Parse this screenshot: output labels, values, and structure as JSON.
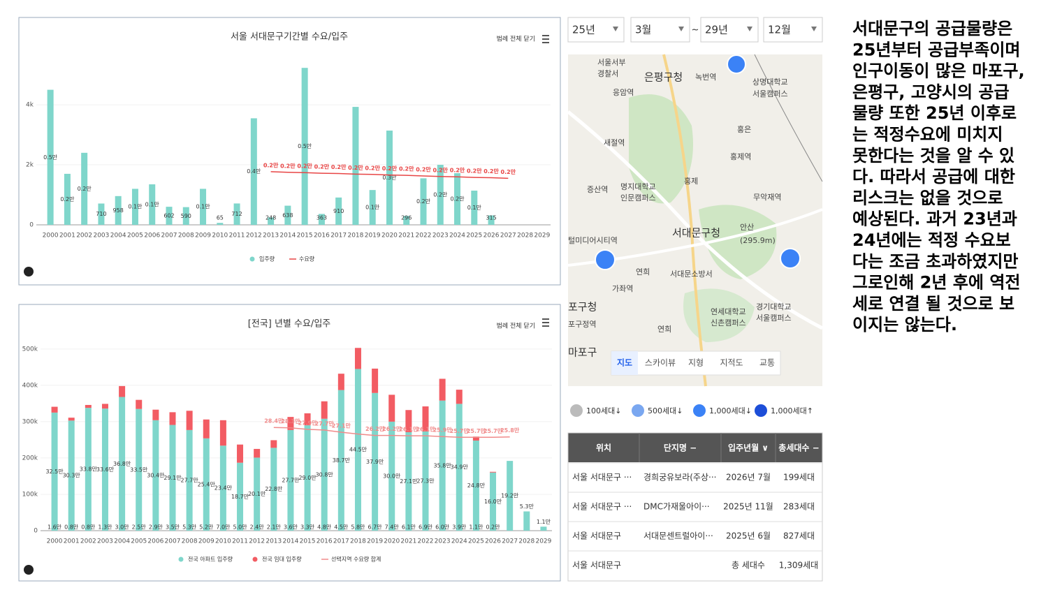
{
  "chart_data": [
    {
      "type": "bar",
      "title": "서울 서대문구기간별 수요/입주",
      "legend_toggle": "범례 전체 닫기",
      "legend": "bottom",
      "categories": [
        "2000",
        "2001",
        "2002",
        "2003",
        "2004",
        "2005",
        "2006",
        "2007",
        "2008",
        "2009",
        "2010",
        "2011",
        "2012",
        "2013",
        "2014",
        "2015",
        "2016",
        "2017",
        "2018",
        "2019",
        "2020",
        "2021",
        "2022",
        "2023",
        "2024",
        "2025",
        "2026",
        "2027",
        "2028",
        "2029"
      ],
      "ylim": [
        0,
        5700
      ],
      "yticks": [
        0,
        {
          "value": 2000,
          "label": "2k"
        },
        {
          "value": 4000,
          "label": "4k"
        }
      ],
      "series": [
        {
          "name": "입주량",
          "color": "#7fd6cb",
          "type": "bar",
          "values": [
            4500,
            1700,
            2400,
            710,
            958,
            1200,
            1350,
            602,
            590,
            1200,
            65,
            712,
            3550,
            248,
            638,
            5230,
            363,
            910,
            3930,
            1160,
            3140,
            296,
            1550,
            2000,
            1720,
            1140,
            315,
            null,
            null,
            null
          ],
          "value_labels": [
            "0.5만",
            "0.2만",
            "0.2만",
            "710",
            "958",
            "0.1만",
            "0.1만",
            "602",
            "590",
            "0.1만",
            "65",
            "712",
            "0.4만",
            "248",
            "638",
            "0.5만",
            "363",
            "910",
            null,
            "0.1만",
            "0.3만",
            "296",
            "0.2만",
            "0.2만",
            "0.2만",
            "0.1만",
            "315",
            null,
            null,
            null
          ]
        },
        {
          "name": "수요량",
          "color": "#e84545",
          "type": "line",
          "values": [
            null,
            null,
            null,
            null,
            null,
            null,
            null,
            null,
            null,
            null,
            null,
            null,
            null,
            1770,
            1750,
            1740,
            1720,
            1710,
            1690,
            1680,
            1660,
            1650,
            1630,
            1610,
            1600,
            1580,
            1570,
            1550,
            null,
            null
          ],
          "value_labels": [
            null,
            null,
            null,
            null,
            null,
            null,
            null,
            null,
            null,
            null,
            null,
            null,
            null,
            "0.2만",
            "0.2만",
            "0.2만",
            "0.2만",
            "0.2만",
            "0.2만",
            "0.2만",
            "0.2만",
            "0.2만",
            "0.2만",
            "0.2만",
            "0.2만",
            "0.2만",
            "0.2만",
            "0.2만",
            null,
            null
          ]
        }
      ]
    },
    {
      "type": "bar",
      "stacked": true,
      "title": "[전국] 년별 수요/입주",
      "legend_toggle": "범례 전체 닫기",
      "legend": "bottom",
      "categories": [
        "2000",
        "2001",
        "2002",
        "2003",
        "2004",
        "2005",
        "2006",
        "2007",
        "2008",
        "2009",
        "2010",
        "2011",
        "2012",
        "2013",
        "2014",
        "2015",
        "2016",
        "2017",
        "2018",
        "2019",
        "2020",
        "2021",
        "2022",
        "2023",
        "2024",
        "2025",
        "2026",
        "2027",
        "2028",
        "2029"
      ],
      "ylim": [
        0,
        540000
      ],
      "yticks": [
        0,
        {
          "value": 100000,
          "label": "100k"
        },
        {
          "value": 200000,
          "label": "200k"
        },
        {
          "value": 300000,
          "label": "300k"
        },
        {
          "value": 400000,
          "label": "400k"
        },
        {
          "value": 500000,
          "label": "500k"
        }
      ],
      "series": [
        {
          "name": "전국 아파트 입주량",
          "color": "#7fd6cb",
          "type": "bar",
          "values": [
            325000,
            303000,
            338000,
            336000,
            368000,
            335000,
            304000,
            291000,
            277000,
            254000,
            234000,
            187000,
            201000,
            228000,
            277000,
            290000,
            308000,
            387000,
            445000,
            379000,
            300000,
            271000,
            273000,
            358000,
            349000,
            248000,
            160000,
            192000,
            53000,
            11000
          ],
          "value_labels": [
            "32.5만",
            "30.3만",
            "33.8만",
            "33.6만",
            "36.8만",
            "33.5만",
            "30.4만",
            "29.1만",
            "27.7만",
            "25.4만",
            "23.4만",
            "18.7만",
            "20.1만",
            "22.8만",
            "27.7만",
            "29.0만",
            "30.8만",
            "38.7만",
            "44.5만",
            "37.9만",
            "30.0만",
            "27.1만",
            "27.3만",
            "35.8만",
            "34.9만",
            "24.8만",
            "16.0만",
            "19.2만",
            "5.3만",
            "1.1만"
          ]
        },
        {
          "name": "전국 임대 입주량",
          "color": "#f25c63",
          "type": "bar",
          "values": [
            16000,
            8000,
            8000,
            13000,
            30000,
            25000,
            29000,
            35000,
            53000,
            52000,
            70000,
            50000,
            24000,
            21000,
            36000,
            33000,
            48000,
            45000,
            58000,
            67000,
            74000,
            61000,
            69000,
            60000,
            39000,
            11000,
            2000,
            null,
            null,
            null
          ],
          "value_labels": [
            "1.6만",
            "0.8만",
            "0.8만",
            "1.3만",
            "3.0만",
            "2.5만",
            "2.9만",
            "3.5만",
            "5.3만",
            "5.2만",
            "7.0만",
            "5.0만",
            "2.4만",
            "2.1만",
            "3.6만",
            "3.3만",
            "4.8만",
            "4.5만",
            "5.8만",
            "6.7만",
            "7.4만",
            "6.1만",
            "6.9만",
            "6.0만",
            "3.9만",
            "1.1만",
            "0.2만",
            null,
            null,
            null
          ]
        },
        {
          "name": "선택지역 수요량 합계",
          "color": "#f08a8a",
          "type": "line",
          "values": [
            null,
            null,
            null,
            null,
            null,
            null,
            null,
            null,
            null,
            null,
            null,
            null,
            null,
            284000,
            283000,
            279000,
            277000,
            271000,
            266000,
            262000,
            262000,
            261000,
            261000,
            259000,
            257000,
            257000,
            257000,
            258000,
            null,
            null
          ],
          "value_labels": [
            null,
            null,
            null,
            null,
            null,
            null,
            null,
            null,
            null,
            null,
            null,
            null,
            null,
            "28.4만",
            "28.3만",
            "27.9만",
            "27.7만",
            "27.1만",
            null,
            "26.2만",
            "26.2만",
            "26.1만",
            "26.1만",
            "25.9만",
            "25.7만",
            "25.7만",
            "25.7만",
            "25.8만",
            null,
            null
          ]
        }
      ]
    }
  ],
  "selectors": {
    "from_year": "25년",
    "from_month": "3월",
    "separator": "~",
    "to_year": "29년",
    "to_month": "12월"
  },
  "map": {
    "labels": [
      "서울서부",
      "경찰서",
      "은평구청",
      "녹번역",
      "상명대학교",
      "서울캠퍼스",
      "응암역",
      "홍은",
      "새절역",
      "홍제역",
      "증산역",
      "명지대학교",
      "인문캠퍼스",
      "홍제",
      "무악재역",
      "서대문구청",
      "안산",
      "(295.9m)",
      "털미디어시티역",
      "연희",
      "서대문소방서",
      "가좌역",
      "포구청",
      "포구정역",
      "연세대학교",
      "신촌캠퍼스",
      "경기대학교",
      "서울캠퍼스",
      "연희",
      "마포구"
    ],
    "tabs": [
      "지도",
      "스카이뷰",
      "지형",
      "지적도",
      "교통"
    ]
  },
  "map_legend": [
    "100세대↓",
    "500세대↓",
    "1,000세대↓",
    "1,000세대↑"
  ],
  "table": {
    "headers": [
      "위치",
      "단지명 −",
      "입주년월 ∨",
      "총세대수 −"
    ],
    "rows": [
      [
        "서울 서대문구 ···",
        "경희궁유보라(주상···",
        "2026년 7월",
        "199세대"
      ],
      [
        "서울 서대문구 ···",
        "DMC가재울아이···",
        "2025년 11월",
        "283세대"
      ],
      [
        "서울 서대문구",
        "서대문센트럴아이···",
        "2025년 6월",
        "827세대"
      ]
    ],
    "footer": {
      "location": "서울 서대문구",
      "label": "총 세대수",
      "total": "1,309세대"
    }
  },
  "text": [
    "서대문구의 공급물량은",
    "25년부터 공급부족이며",
    "인구이동이 많은 마포구,",
    "은평구, 고양시의 공급",
    "물량 또한 25년 이후로",
    "는 적정수요에 미치지",
    "못한다는 것을 알 수 있",
    "다.  따라서 공급에 대한",
    "리스크는 없을 것으로",
    "예상된다.   과거 23년과",
    "24년에는 적정 수요보",
    "다는 조금 초과하였지만",
    "그로인해 2년 후에 역전",
    "세로 연결 될 것으로 보",
    "이지는 않는다."
  ]
}
